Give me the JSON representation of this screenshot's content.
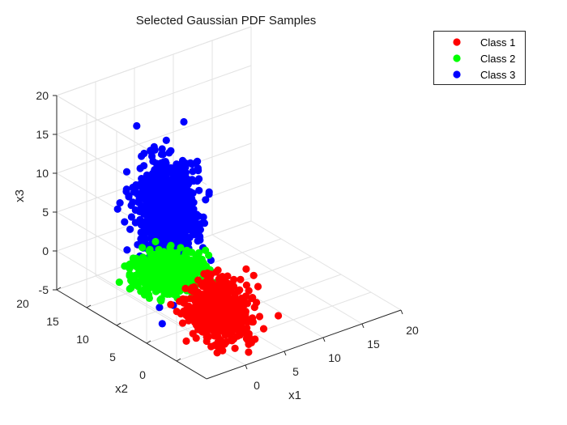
{
  "chart_data": {
    "type": "scatter3d",
    "title": "Selected Gaussian PDF Samples",
    "xlabel": "x1",
    "ylabel": "x2",
    "zlabel": "x3",
    "xlim": [
      -5,
      20
    ],
    "ylim": [
      -5,
      20
    ],
    "zlim": [
      -5,
      20
    ],
    "xticks": [
      0,
      5,
      10,
      15,
      20
    ],
    "yticks": [
      0,
      5,
      10,
      15,
      20
    ],
    "zticks": [
      -5,
      0,
      5,
      10,
      15,
      20
    ],
    "grid": true,
    "legend_position": "top-right",
    "series": [
      {
        "name": "Class 1",
        "color": "#ff0000",
        "mean": [
          2,
          2,
          -2
        ],
        "std": [
          1.6,
          1.6,
          1.6
        ],
        "count": 650
      },
      {
        "name": "Class 2",
        "color": "#00ff00",
        "mean": [
          0,
          8,
          1
        ],
        "std": [
          1.8,
          1.8,
          0.8
        ],
        "count": 600
      },
      {
        "name": "Class 3",
        "color": "#0000ff",
        "mean": [
          0,
          8,
          9
        ],
        "std": [
          1.6,
          1.6,
          3.0
        ],
        "count": 900
      }
    ]
  }
}
